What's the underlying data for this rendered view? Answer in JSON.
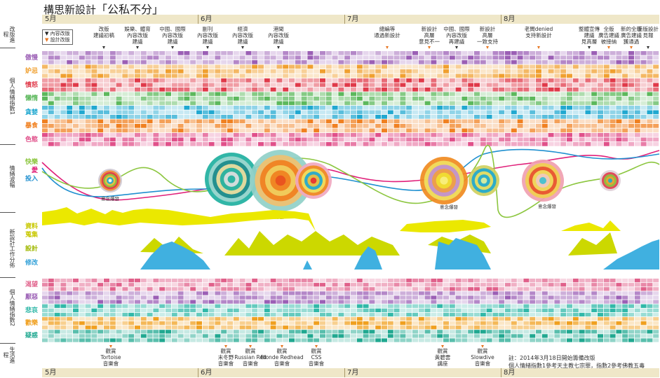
{
  "title": {
    "main": "構思新設計",
    "quote": "「公私不分」"
  },
  "months": [
    "5月",
    "6月",
    "7月",
    "8月"
  ],
  "left_sections": [
    {
      "label": "改版進程",
      "key": "progress"
    },
    {
      "label": "個人情緒指數1",
      "key": "mood1"
    },
    {
      "label": "情緒波幅",
      "key": "wave"
    },
    {
      "label": "新設計工作分佈",
      "key": "work"
    },
    {
      "label": "個人情緒指數2",
      "key": "mood2"
    },
    {
      "label": "生活進程",
      "key": "life"
    }
  ],
  "legend": {
    "content": "內容改版",
    "design": "設計改版"
  },
  "top_events": [
    {
      "text": "改版\n建議初稿"
    },
    {
      "text": "娛樂、體育\n內容改版\n建議"
    },
    {
      "text": "中國、國際\n內容改版\n建議"
    },
    {
      "text": "副刊\n內容改版\n建議"
    },
    {
      "text": "經濟\n內容改版\n建議"
    },
    {
      "text": "港聞\n內容改版\n建議"
    },
    {
      "text": "總編等\n通過新設計"
    },
    {
      "text": "新設計\n高層\n意見不一"
    },
    {
      "text": "中國、國際\n內容改版\n再建議"
    },
    {
      "text": "新設計\n高層\n一致支持"
    },
    {
      "text": "老闆denied\n支持新設計"
    },
    {
      "text": "整體宣傳\n建議\n見高層"
    },
    {
      "text": "全版\n廣告建議\n被接納"
    },
    {
      "text": "新的全版\n廣告建議\n獲通過"
    },
    {
      "text": "新版設計\n見報"
    }
  ],
  "mood1_rows": [
    {
      "label": "傲慢",
      "color": "#9b5fb5"
    },
    {
      "label": "妒忌",
      "color": "#f0a030"
    },
    {
      "label": "憤怒",
      "color": "#e03a4a"
    },
    {
      "label": "懶惰",
      "color": "#5cb85c"
    },
    {
      "label": "貪婪",
      "color": "#20a8d0"
    },
    {
      "label": "暴食",
      "color": "#f08020"
    },
    {
      "label": "色慾",
      "color": "#e0508a"
    }
  ],
  "wave_labels": [
    {
      "label": "快樂",
      "color": "#8cc63f"
    },
    {
      "label": "愛",
      "color": "#e0207a"
    },
    {
      "label": "投入",
      "color": "#2090d0"
    }
  ],
  "burst_label": "意念爆發",
  "work_labels": [
    {
      "label": "資料\n蒐集",
      "color": "#c8c800"
    },
    {
      "label": "設計",
      "color": "#a0b800"
    },
    {
      "label": "修改",
      "color": "#30a0d8"
    }
  ],
  "mood2_rows": [
    {
      "label": "渴望",
      "color": "#e0608a"
    },
    {
      "label": "厭惡",
      "color": "#9b5fb5"
    },
    {
      "label": "悲哀",
      "color": "#30b8a8"
    },
    {
      "label": "歡樂",
      "color": "#f0a020"
    },
    {
      "label": "疑惑",
      "color": "#20a890"
    }
  ],
  "life_events": [
    {
      "text": "觀賞\nTortoise\n音樂會"
    },
    {
      "text": "觀賞\n末冬野\n音樂會"
    },
    {
      "text": "觀賞\nRussian Red\n音樂會"
    },
    {
      "text": "觀賞\nBlonde Redhead\n音樂會"
    },
    {
      "text": "觀賞\nCSS\n音樂會"
    },
    {
      "text": "觀賞\n黃碧雲\n講座"
    },
    {
      "text": "觀賞\nSlowdive\n音樂會"
    }
  ],
  "note": {
    "line1": "註：2014年3月18日開始籌備改版",
    "line2": "個人情緒指數1參考天主教七宗罪，指數2參考佛教五毒"
  },
  "colors": {
    "month_bg": "#efe7c8",
    "accent": "#e87722"
  }
}
